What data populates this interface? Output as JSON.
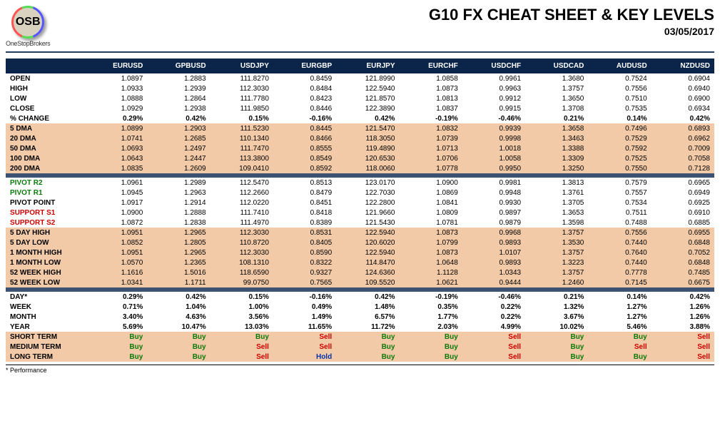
{
  "header": {
    "logo_text": "OSB",
    "logo_sub": "OneStopBrokers",
    "title": "G10 FX CHEAT SHEET & KEY LEVELS",
    "date": "03/05/2017"
  },
  "columns": [
    "EURUSD",
    "GPBUSD",
    "USDJPY",
    "EURGBP",
    "EURJPY",
    "EURCHF",
    "USDCHF",
    "USDCAD",
    "AUDUSD",
    "NZDUSD"
  ],
  "sections": [
    {
      "style": "plain",
      "rows": [
        {
          "label": "OPEN",
          "cells": [
            "1.0897",
            "1.2883",
            "111.8270",
            "0.8459",
            "121.8990",
            "1.0858",
            "0.9961",
            "1.3680",
            "0.7524",
            "0.6904"
          ]
        },
        {
          "label": "HIGH",
          "cells": [
            "1.0933",
            "1.2939",
            "112.3030",
            "0.8484",
            "122.5940",
            "1.0873",
            "0.9963",
            "1.3757",
            "0.7556",
            "0.6940"
          ]
        },
        {
          "label": "LOW",
          "cells": [
            "1.0888",
            "1.2864",
            "111.7780",
            "0.8423",
            "121.8570",
            "1.0813",
            "0.9912",
            "1.3650",
            "0.7510",
            "0.6900"
          ]
        },
        {
          "label": "CLOSE",
          "cells": [
            "1.0929",
            "1.2938",
            "111.9850",
            "0.8446",
            "122.3890",
            "1.0837",
            "0.9915",
            "1.3708",
            "0.7535",
            "0.6934"
          ]
        },
        {
          "label": "% CHANGE",
          "bold": true,
          "cells": [
            "0.29%",
            "0.42%",
            "0.15%",
            "-0.16%",
            "0.42%",
            "-0.19%",
            "-0.46%",
            "0.21%",
            "0.14%",
            "0.42%"
          ]
        }
      ]
    },
    {
      "style": "peach",
      "rows": [
        {
          "label": "5 DMA",
          "cells": [
            "1.0899",
            "1.2903",
            "111.5230",
            "0.8445",
            "121.5470",
            "1.0832",
            "0.9939",
            "1.3658",
            "0.7496",
            "0.6893"
          ]
        },
        {
          "label": "20 DMA",
          "cells": [
            "1.0741",
            "1.2685",
            "110.1340",
            "0.8466",
            "118.3050",
            "1.0739",
            "0.9998",
            "1.3463",
            "0.7529",
            "0.6962"
          ]
        },
        {
          "label": "50 DMA",
          "cells": [
            "1.0693",
            "1.2497",
            "111.7470",
            "0.8555",
            "119.4890",
            "1.0713",
            "1.0018",
            "1.3388",
            "0.7592",
            "0.7009"
          ]
        },
        {
          "label": "100 DMA",
          "cells": [
            "1.0643",
            "1.2447",
            "113.3800",
            "0.8549",
            "120.6530",
            "1.0706",
            "1.0058",
            "1.3309",
            "0.7525",
            "0.7058"
          ]
        },
        {
          "label": "200 DMA",
          "cells": [
            "1.0835",
            "1.2609",
            "109.0410",
            "0.8592",
            "118.0060",
            "1.0778",
            "0.9950",
            "1.3250",
            "0.7550",
            "0.7128"
          ]
        }
      ]
    },
    {
      "style": "navy"
    },
    {
      "style": "plain",
      "rows": [
        {
          "label": "PIVOT R2",
          "labelClass": "pivot-r",
          "cells": [
            "1.0961",
            "1.2989",
            "112.5470",
            "0.8513",
            "123.0170",
            "1.0900",
            "0.9981",
            "1.3813",
            "0.7579",
            "0.6965"
          ]
        },
        {
          "label": "PIVOT R1",
          "labelClass": "pivot-r",
          "cells": [
            "1.0945",
            "1.2963",
            "112.2660",
            "0.8479",
            "122.7030",
            "1.0869",
            "0.9948",
            "1.3761",
            "0.7557",
            "0.6949"
          ]
        },
        {
          "label": "PIVOT POINT",
          "cells": [
            "1.0917",
            "1.2914",
            "112.0220",
            "0.8451",
            "122.2800",
            "1.0841",
            "0.9930",
            "1.3705",
            "0.7534",
            "0.6925"
          ]
        },
        {
          "label": "SUPPORT S1",
          "labelClass": "pivot-s",
          "cells": [
            "1.0900",
            "1.2888",
            "111.7410",
            "0.8418",
            "121.9660",
            "1.0809",
            "0.9897",
            "1.3653",
            "0.7511",
            "0.6910"
          ]
        },
        {
          "label": "SUPPORT S2",
          "labelClass": "pivot-s",
          "cells": [
            "1.0872",
            "1.2838",
            "111.4970",
            "0.8389",
            "121.5430",
            "1.0781",
            "0.9879",
            "1.3598",
            "0.7488",
            "0.6885"
          ]
        }
      ]
    },
    {
      "style": "peach",
      "rows": [
        {
          "label": "5 DAY HIGH",
          "cells": [
            "1.0951",
            "1.2965",
            "112.3030",
            "0.8531",
            "122.5940",
            "1.0873",
            "0.9968",
            "1.3757",
            "0.7556",
            "0.6955"
          ]
        },
        {
          "label": "5 DAY LOW",
          "cells": [
            "1.0852",
            "1.2805",
            "110.8720",
            "0.8405",
            "120.6020",
            "1.0799",
            "0.9893",
            "1.3530",
            "0.7440",
            "0.6848"
          ]
        },
        {
          "label": "1 MONTH HIGH",
          "cells": [
            "1.0951",
            "1.2965",
            "112.3030",
            "0.8590",
            "122.5940",
            "1.0873",
            "1.0107",
            "1.3757",
            "0.7640",
            "0.7052"
          ]
        },
        {
          "label": "1 MONTH LOW",
          "cells": [
            "1.0570",
            "1.2365",
            "108.1310",
            "0.8322",
            "114.8470",
            "1.0648",
            "0.9893",
            "1.3223",
            "0.7440",
            "0.6848"
          ]
        },
        {
          "label": "52 WEEK HIGH",
          "cells": [
            "1.1616",
            "1.5016",
            "118.6590",
            "0.9327",
            "124.6360",
            "1.1128",
            "1.0343",
            "1.3757",
            "0.7778",
            "0.7485"
          ]
        },
        {
          "label": "52 WEEK LOW",
          "cells": [
            "1.0341",
            "1.1711",
            "99.0750",
            "0.7565",
            "109.5520",
            "1.0621",
            "0.9444",
            "1.2460",
            "0.7145",
            "0.6675"
          ]
        }
      ]
    },
    {
      "style": "navy"
    },
    {
      "style": "plain",
      "rows": [
        {
          "label": "DAY*",
          "bold": true,
          "cells": [
            "0.29%",
            "0.42%",
            "0.15%",
            "-0.16%",
            "0.42%",
            "-0.19%",
            "-0.46%",
            "0.21%",
            "0.14%",
            "0.42%"
          ]
        },
        {
          "label": "WEEK",
          "bold": true,
          "cells": [
            "0.71%",
            "1.04%",
            "1.00%",
            "0.49%",
            "1.48%",
            "0.35%",
            "0.22%",
            "1.32%",
            "1.27%",
            "1.26%"
          ]
        },
        {
          "label": "MONTH",
          "bold": true,
          "cells": [
            "3.40%",
            "4.63%",
            "3.56%",
            "1.49%",
            "6.57%",
            "1.77%",
            "0.22%",
            "3.67%",
            "1.27%",
            "1.26%"
          ]
        },
        {
          "label": "YEAR",
          "bold": true,
          "cells": [
            "5.69%",
            "10.47%",
            "13.03%",
            "11.65%",
            "11.72%",
            "2.03%",
            "4.99%",
            "10.02%",
            "5.46%",
            "3.88%"
          ]
        }
      ]
    },
    {
      "style": "peach",
      "signal": true,
      "rows": [
        {
          "label": "SHORT TERM",
          "cells": [
            "Buy",
            "Buy",
            "Buy",
            "Sell",
            "Buy",
            "Buy",
            "Sell",
            "Buy",
            "Buy",
            "Sell"
          ]
        },
        {
          "label": "MEDIUM TERM",
          "cells": [
            "Buy",
            "Buy",
            "Sell",
            "Sell",
            "Buy",
            "Buy",
            "Sell",
            "Buy",
            "Sell",
            "Sell"
          ]
        },
        {
          "label": "LONG TERM",
          "cells": [
            "Buy",
            "Buy",
            "Sell",
            "Hold",
            "Buy",
            "Buy",
            "Sell",
            "Buy",
            "Buy",
            "Sell"
          ]
        }
      ]
    }
  ],
  "footnote": "* Performance"
}
